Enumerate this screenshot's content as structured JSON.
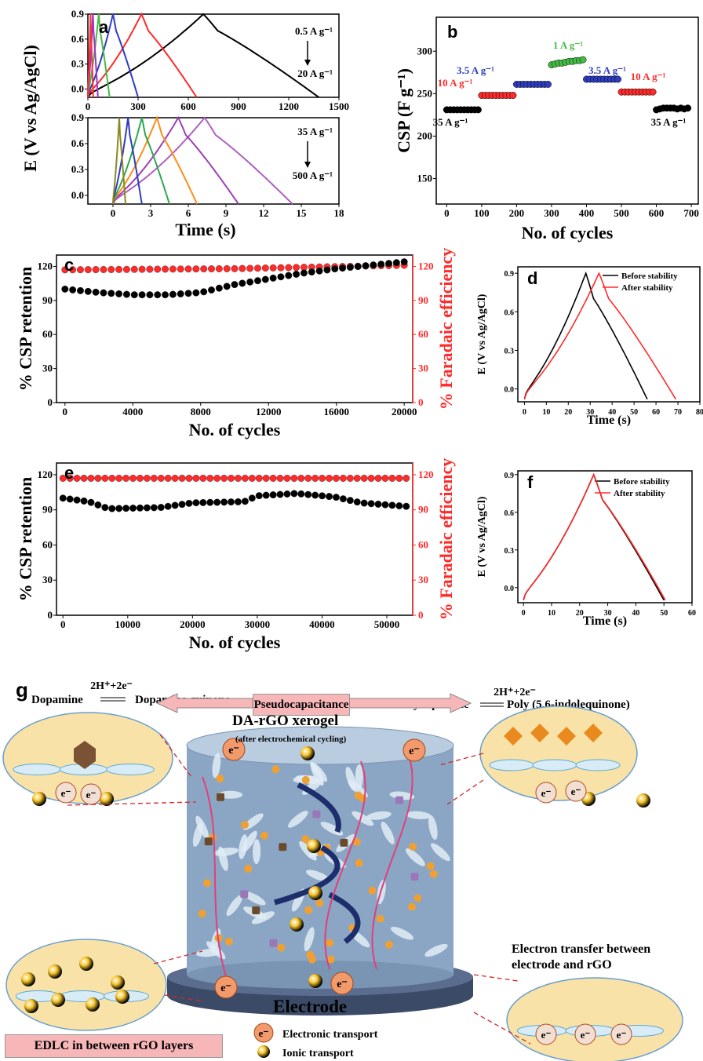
{
  "chart_data": [
    {
      "panel": "a",
      "type": "line",
      "ylabel": "E (V vs Ag/AgCl)",
      "subplots": [
        {
          "xlim": [
            0,
            1500
          ],
          "ylim": [
            -0.1,
            0.9
          ],
          "xticks": [
            0,
            300,
            600,
            900,
            1200,
            1500
          ],
          "yticks": [
            0.0,
            0.3,
            0.6,
            0.9
          ],
          "annotation_top": "0.5 A g⁻¹",
          "annotation_bottom": "20 A g⁻¹",
          "series": [
            {
              "color": "#000000",
              "x": [
                0,
                690,
                1380
              ],
              "ymin": -0.1,
              "ymax": 0.9
            },
            {
              "color": "#ff2a2a",
              "x": [
                0,
                320,
                650
              ],
              "ymin": -0.1,
              "ymax": 0.9
            },
            {
              "color": "#2e3dbf",
              "x": [
                0,
                150,
                300
              ],
              "ymin": -0.1,
              "ymax": 0.9
            },
            {
              "color": "#44bb44",
              "x": [
                0,
                65,
                130
              ],
              "ymin": -0.1,
              "ymax": 0.9
            },
            {
              "color": "#9933cc",
              "x": [
                0,
                30,
                60
              ],
              "ymin": -0.1,
              "ymax": 0.9
            },
            {
              "color": "#ff3333",
              "x": [
                0,
                16,
                32
              ],
              "ymin": -0.1,
              "ymax": 0.9
            }
          ]
        },
        {
          "xlim": [
            -2,
            18
          ],
          "ylim": [
            -0.1,
            0.9
          ],
          "xticks": [
            0,
            3,
            6,
            9,
            12,
            15,
            18
          ],
          "yticks": [
            0.0,
            0.3,
            0.6,
            0.9
          ],
          "xlabel": "Time (s)",
          "annotation_top": "35 A g⁻¹",
          "annotation_bottom": "500 A g⁻¹",
          "series": [
            {
              "color": "#b05ec2",
              "x": [
                0,
                7.3,
                14.3
              ]
            },
            {
              "color": "#9b3fb5",
              "x": [
                0,
                5.2,
                10.0
              ]
            },
            {
              "color": "#ff8c1a",
              "x": [
                0,
                3.5,
                6.7
              ]
            },
            {
              "color": "#2fa84f",
              "x": [
                0,
                2.3,
                4.5
              ]
            },
            {
              "color": "#2e3dbf",
              "x": [
                0,
                1.2,
                2.3
              ]
            },
            {
              "color": "#8a8a1e",
              "x": [
                0,
                0.5,
                1.0
              ]
            }
          ]
        }
      ]
    },
    {
      "panel": "b",
      "type": "scatter",
      "xlabel": "No. of cycles",
      "ylabel": "CSP (F g⁻¹)",
      "xlim": [
        -30,
        720
      ],
      "ylim": [
        120,
        340
      ],
      "xticks": [
        0,
        100,
        200,
        300,
        400,
        500,
        600,
        700
      ],
      "yticks": [
        150,
        200,
        250,
        300
      ],
      "groups": [
        {
          "label": "35 A g⁻¹",
          "color": "#000000",
          "start": 0,
          "values": [
            231,
            231,
            231,
            231,
            231,
            231,
            231,
            231,
            231,
            231
          ]
        },
        {
          "label": "10 A g⁻¹",
          "color": "#ff2a2a",
          "start": 100,
          "values": [
            248,
            248,
            248,
            248,
            248,
            248,
            248,
            248,
            248,
            248
          ]
        },
        {
          "label": "3.5 A g⁻¹",
          "color": "#2e3dbf",
          "start": 200,
          "values": [
            261,
            261,
            261,
            261,
            261,
            261,
            261,
            261,
            261,
            261
          ]
        },
        {
          "label": "1 A g⁻¹",
          "color": "#44bb44",
          "start": 300,
          "values": [
            284,
            285,
            286,
            286,
            287,
            288,
            288,
            289,
            289,
            290
          ]
        },
        {
          "label": "3.5 A g⁻¹",
          "color": "#2e3dbf",
          "start": 400,
          "values": [
            267,
            267,
            267,
            267,
            267,
            267,
            267,
            267,
            267,
            267
          ]
        },
        {
          "label": "10 A g⁻¹",
          "color": "#ff2a2a",
          "start": 500,
          "values": [
            252,
            252,
            252,
            252,
            252,
            252,
            252,
            252,
            252,
            252
          ]
        },
        {
          "label": "35 A g⁻¹",
          "color": "#000000",
          "start": 600,
          "values": [
            231,
            232,
            233,
            233,
            233,
            233,
            232,
            233,
            232,
            233
          ]
        }
      ]
    },
    {
      "panel": "c",
      "type": "scatter",
      "xlabel": "No. of cycles",
      "ylabel": "% CSP retention",
      "ylabel_right": "% Faradaic efficiency",
      "xlim": [
        -500,
        20500
      ],
      "ylim": [
        0,
        130
      ],
      "xticks": [
        0,
        4000,
        8000,
        12000,
        16000,
        20000
      ],
      "yticks": [
        0,
        30,
        60,
        90,
        120
      ],
      "retention": {
        "color": "#000000",
        "x_start": 0,
        "x_end": 20000,
        "n": 45,
        "keypoints": [
          [
            0,
            100
          ],
          [
            2000,
            97
          ],
          [
            4000,
            95
          ],
          [
            6000,
            95
          ],
          [
            8000,
            97
          ],
          [
            10000,
            104
          ],
          [
            12000,
            109
          ],
          [
            14000,
            114
          ],
          [
            16000,
            118
          ],
          [
            18000,
            121
          ],
          [
            20000,
            124
          ]
        ]
      },
      "efficiency": {
        "color": "#ff2a2a",
        "x_start": 0,
        "x_end": 20000,
        "n": 45,
        "keypoints": [
          [
            0,
            117
          ],
          [
            10000,
            118
          ],
          [
            20000,
            121
          ]
        ]
      }
    },
    {
      "panel": "d",
      "type": "line",
      "xlabel": "Time (s)",
      "ylabel": "E (V vs Ag/AgCl)",
      "xlim": [
        -3,
        80
      ],
      "ylim": [
        -0.1,
        0.95
      ],
      "xticks": [
        0,
        10,
        20,
        30,
        40,
        50,
        60,
        70,
        80
      ],
      "yticks": [
        0.0,
        0.3,
        0.6,
        0.9
      ],
      "series": [
        {
          "name": "Before stability",
          "color": "#000000",
          "x": [
            0,
            28,
            56
          ]
        },
        {
          "name": "After stability",
          "color": "#ff2a2a",
          "x": [
            0,
            34,
            69
          ]
        }
      ]
    },
    {
      "panel": "e",
      "type": "scatter",
      "xlabel": "No. of cycles",
      "ylabel": "% CSP retention",
      "ylabel_right": "% Faradaic efficiency",
      "xlim": [
        -1000,
        54000
      ],
      "ylim": [
        0,
        130
      ],
      "xticks": [
        0,
        10000,
        20000,
        30000,
        40000,
        50000
      ],
      "yticks": [
        0,
        30,
        60,
        90,
        120
      ],
      "retention": {
        "color": "#000000",
        "x_start": 0,
        "x_end": 53000,
        "n": 50,
        "keypoints": [
          [
            0,
            100
          ],
          [
            4000,
            97
          ],
          [
            7000,
            91
          ],
          [
            15000,
            92
          ],
          [
            20000,
            96
          ],
          [
            28000,
            97
          ],
          [
            30000,
            102
          ],
          [
            36000,
            104
          ],
          [
            42000,
            101
          ],
          [
            46000,
            96
          ],
          [
            53000,
            93
          ]
        ]
      },
      "efficiency": {
        "color": "#ff2a2a",
        "x_start": 0,
        "x_end": 53000,
        "n": 50,
        "keypoints": [
          [
            0,
            117
          ],
          [
            53000,
            117
          ]
        ]
      }
    },
    {
      "panel": "f",
      "type": "line",
      "xlabel": "Time (s)",
      "ylabel": "E (V vs Ag/AgCl)",
      "xlim": [
        -2,
        60
      ],
      "ylim": [
        -0.12,
        0.93
      ],
      "xticks": [
        0,
        10,
        20,
        30,
        40,
        50,
        60
      ],
      "yticks": [
        0.0,
        0.3,
        0.6,
        0.9
      ],
      "series": [
        {
          "name": "Before stability",
          "color": "#000000",
          "x": [
            0,
            25,
            50
          ]
        },
        {
          "name": "After stability",
          "color": "#ff2a2a",
          "x": [
            0,
            25,
            50.5
          ]
        }
      ]
    }
  ],
  "panel_letters": [
    "a",
    "b",
    "c",
    "d",
    "e",
    "f",
    "g"
  ],
  "scheme": {
    "left_reaction": {
      "reactant": "Dopamine",
      "over_arrow": "2H⁺+2e⁻",
      "product": "Dopamine quinone"
    },
    "right_reaction": {
      "reactant": "Polydopamine",
      "over_arrow": "2H⁺+2e⁻",
      "product": "Poly (5,6-indolequinone)"
    },
    "pseudocap_label": "Pseudocapacitance",
    "xerogel_title": "DA-rGO xerogel",
    "xerogel_subtitle": "(after electrochemical cycling)",
    "electrode_label": "Electrode",
    "edlc_label": "EDLC in between rGO layers",
    "electron_transfer_label": "Electron transfer between electrode and rGO",
    "legend_electronic": "Electronic transport",
    "legend_ionic": "Ionic transport",
    "electron_symbol": "e⁻"
  }
}
